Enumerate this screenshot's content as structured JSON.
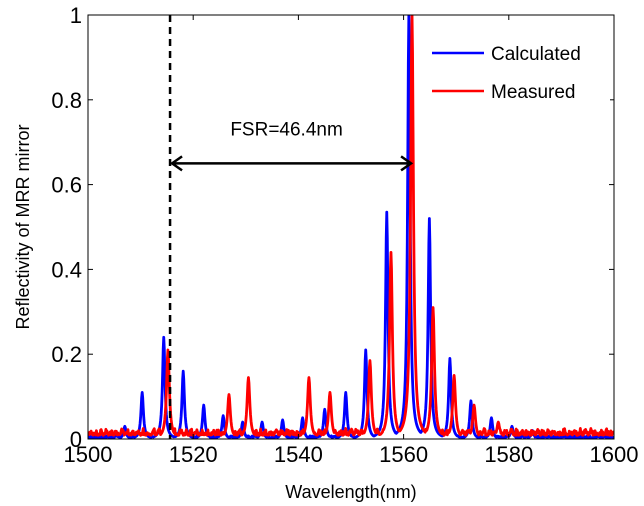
{
  "chart_data": {
    "type": "line",
    "xlabel": "Wavelength(nm)",
    "ylabel": "Reflectivity of MRR mirror",
    "xlim": [
      1500,
      1600
    ],
    "ylim": [
      0,
      1
    ],
    "xticks": [
      1500,
      1520,
      1540,
      1560,
      1580,
      1600
    ],
    "yticks": [
      0,
      0.2,
      0.4,
      0.6,
      0.8,
      1
    ],
    "ytick_labels": [
      "0",
      "0.2",
      "0.4",
      "0.6",
      "0.8",
      "1"
    ],
    "grid": false,
    "legend": {
      "placement": "top-right",
      "entries": [
        "Calculated",
        "Measured"
      ]
    },
    "series": [
      {
        "name": "Calculated",
        "color": "#0000ff",
        "peaks": [
          [
            1507.0,
            0.03
          ],
          [
            1510.3,
            0.11
          ],
          [
            1514.4,
            0.24
          ],
          [
            1518.1,
            0.16
          ],
          [
            1522.0,
            0.08
          ],
          [
            1525.7,
            0.055
          ],
          [
            1529.4,
            0.04
          ],
          [
            1533.1,
            0.04
          ],
          [
            1537.0,
            0.045
          ],
          [
            1540.8,
            0.05
          ],
          [
            1545.0,
            0.07
          ],
          [
            1549.0,
            0.11
          ],
          [
            1552.8,
            0.21
          ],
          [
            1556.8,
            0.535
          ],
          [
            1561.0,
            1.0
          ],
          [
            1564.9,
            0.52
          ],
          [
            1568.8,
            0.19
          ],
          [
            1572.8,
            0.09
          ],
          [
            1576.7,
            0.05
          ],
          [
            1580.6,
            0.03
          ],
          [
            1584.5,
            0.02
          ]
        ],
        "baseline": 0.005
      },
      {
        "name": "Measured",
        "color": "#ff0000",
        "peaks": [
          [
            1515.2,
            0.21
          ],
          [
            1526.8,
            0.105
          ],
          [
            1530.5,
            0.145
          ],
          [
            1542.0,
            0.145
          ],
          [
            1546.0,
            0.11
          ],
          [
            1553.6,
            0.185
          ],
          [
            1557.6,
            0.44
          ],
          [
            1561.6,
            1.0
          ],
          [
            1565.6,
            0.31
          ],
          [
            1569.6,
            0.15
          ],
          [
            1573.4,
            0.08
          ],
          [
            1578.0,
            0.04
          ]
        ],
        "noise_level": 0.025
      }
    ],
    "annotations": [
      {
        "type": "vline",
        "x": 1515.6,
        "style": "dashed"
      },
      {
        "type": "double-arrow",
        "x0": 1515.6,
        "x1": 1561.8,
        "y": 0.65,
        "text": "FSR=46.4nm"
      }
    ]
  }
}
